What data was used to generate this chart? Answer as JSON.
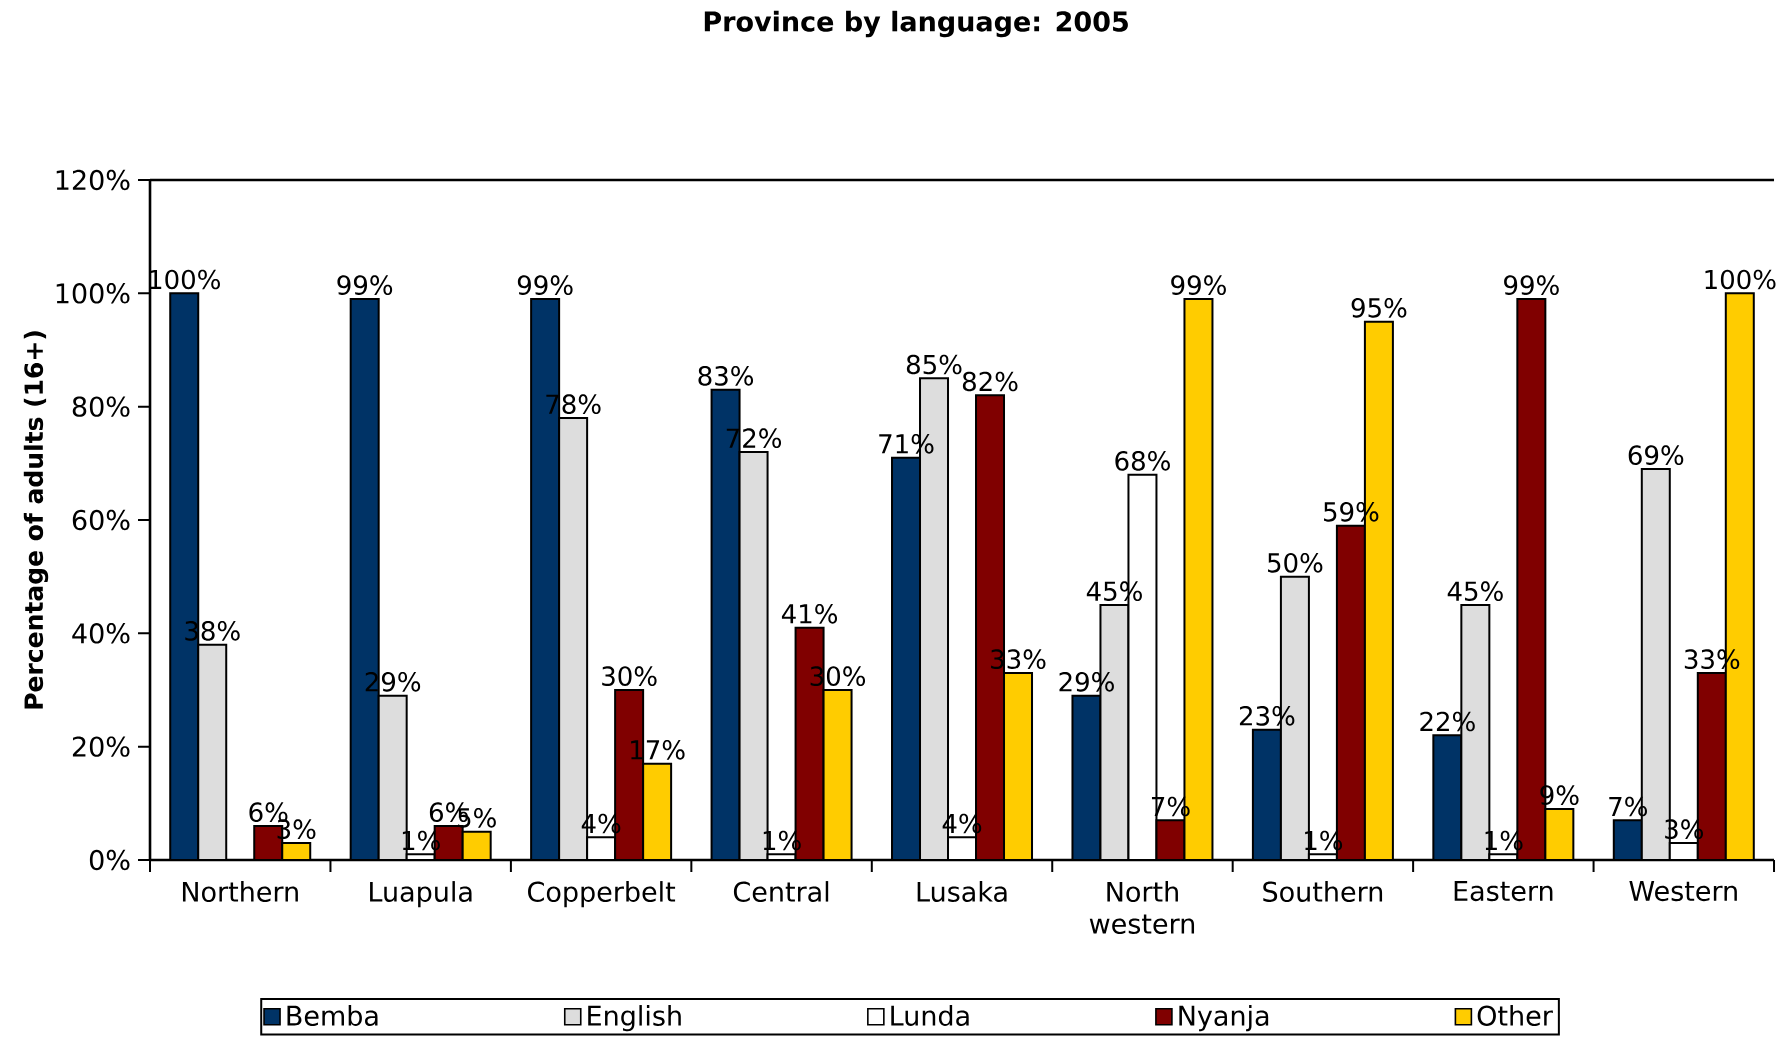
{
  "chart_data": {
    "type": "bar",
    "title": "Province by language: 2005",
    "ylabel": "Percentage of adults (16+)",
    "categories": [
      "Northern",
      "Luapula",
      "Copperbelt",
      "Central",
      "Lusaka",
      "North western",
      "Southern",
      "Eastern",
      "Western"
    ],
    "series": [
      {
        "name": "Bemba",
        "color": "#003366",
        "values": [
          100,
          99,
          99,
          83,
          71,
          29,
          23,
          22,
          7
        ],
        "value_labels": [
          "100%",
          "99%",
          "99%",
          "83%",
          "71%",
          "29%",
          "23%",
          "22%",
          "7%"
        ]
      },
      {
        "name": "English",
        "color": "#dddddd",
        "values": [
          38,
          29,
          78,
          72,
          85,
          45,
          50,
          45,
          69
        ],
        "value_labels": [
          "38%",
          "29%",
          "78%",
          "72%",
          "85%",
          "45%",
          "50%",
          "45%",
          "69%"
        ]
      },
      {
        "name": "Lunda",
        "color": "#ffffff",
        "values": [
          null,
          1,
          4,
          1,
          4,
          68,
          1,
          1,
          3
        ],
        "value_labels": [
          null,
          "1%",
          "4%",
          "1%",
          "4%",
          "68%",
          "1%",
          "1%",
          "3%"
        ]
      },
      {
        "name": "Nyanja",
        "color": "#800000",
        "values": [
          6,
          6,
          30,
          41,
          82,
          7,
          59,
          99,
          33
        ],
        "value_labels": [
          "6%",
          "6%",
          "30%",
          "41%",
          "82%",
          "7%",
          "59%",
          "99%",
          "33%"
        ]
      },
      {
        "name": "Other",
        "color": "#ffcc00",
        "values": [
          3,
          5,
          17,
          30,
          33,
          99,
          95,
          9,
          100
        ],
        "value_labels": [
          "3%",
          "5%",
          "17%",
          "30%",
          "33%",
          "99%",
          "95%",
          "9%",
          "100%"
        ]
      }
    ],
    "ylim": [
      0,
      120
    ],
    "yticks": [
      {
        "value": 0,
        "label": "0%"
      },
      {
        "value": 20,
        "label": "20%"
      },
      {
        "value": 40,
        "label": "40%"
      },
      {
        "value": 60,
        "label": "60%"
      },
      {
        "value": 80,
        "label": "80%"
      },
      {
        "value": 100,
        "label": "100%"
      },
      {
        "value": 120,
        "label": "120%"
      }
    ],
    "legend": "bottom"
  }
}
